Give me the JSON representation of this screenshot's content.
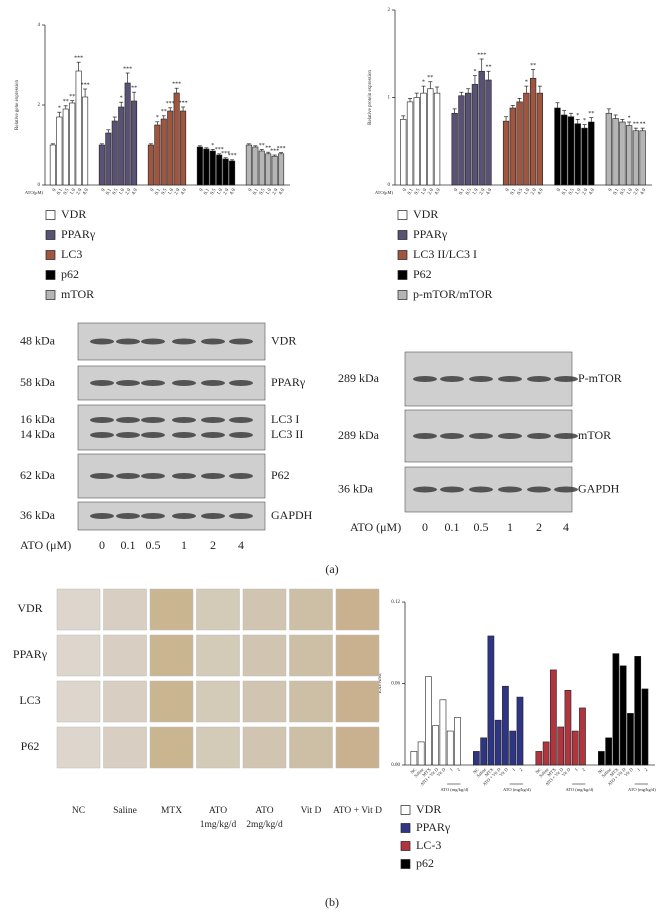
{
  "chart_data": [
    {
      "type": "bar",
      "y_label": "Relative gene expression",
      "x_label": "ATO(μM)",
      "categories": [
        "0",
        "0.1",
        "0.5",
        "1.0",
        "2.0",
        "4.0"
      ],
      "ylim": [
        0,
        4
      ],
      "yticks": [
        0,
        2,
        4
      ],
      "legend": "below",
      "series": [
        {
          "name": "VDR",
          "color": "#ffffff",
          "values": [
            1.0,
            1.7,
            1.9,
            2.05,
            2.85,
            2.2
          ],
          "errors": [
            0.03,
            0.12,
            0.08,
            0.06,
            0.22,
            0.2
          ],
          "sig": [
            null,
            "*",
            "**",
            "**",
            "***",
            "***"
          ]
        },
        {
          "name": "PPARγ",
          "color": "#5a5274",
          "values": [
            1.0,
            1.3,
            1.6,
            1.95,
            2.55,
            2.1
          ],
          "errors": [
            0.03,
            0.08,
            0.1,
            0.12,
            0.25,
            0.22
          ],
          "sig": [
            null,
            null,
            null,
            "*",
            "***",
            "**"
          ]
        },
        {
          "name": "LC3",
          "color": "#a0553e",
          "values": [
            1.0,
            1.5,
            1.65,
            1.85,
            2.3,
            1.85
          ],
          "errors": [
            0.03,
            0.08,
            0.08,
            0.08,
            0.12,
            0.1
          ],
          "sig": [
            null,
            "*",
            "**",
            "***",
            "***",
            "***"
          ]
        },
        {
          "name": "p62",
          "color": "#000000",
          "values": [
            0.95,
            0.9,
            0.85,
            0.75,
            0.65,
            0.6
          ],
          "errors": [
            0.03,
            0.03,
            0.04,
            0.03,
            0.03,
            0.03
          ],
          "sig": [
            null,
            null,
            "*",
            "***",
            "***",
            "***"
          ]
        },
        {
          "name": "mTOR",
          "color": "#b5b5b5",
          "values": [
            1.0,
            0.95,
            0.85,
            0.78,
            0.72,
            0.78
          ],
          "errors": [
            0.03,
            0.03,
            0.04,
            0.04,
            0.03,
            0.03
          ],
          "sig": [
            null,
            null,
            "**",
            "**",
            "***",
            "***"
          ]
        }
      ]
    },
    {
      "type": "bar",
      "y_label": "Relative protein expression",
      "x_label": "ATO(μM)",
      "categories": [
        "0",
        "0.1",
        "0.5",
        "1.0",
        "2.0",
        "4.0"
      ],
      "ylim": [
        0,
        2
      ],
      "yticks": [
        0,
        1,
        2
      ],
      "legend": "below",
      "series": [
        {
          "name": "VDR",
          "color": "#ffffff",
          "values": [
            0.75,
            0.95,
            1.0,
            1.05,
            1.1,
            1.05
          ],
          "errors": [
            0.04,
            0.04,
            0.05,
            0.08,
            0.08,
            0.07
          ],
          "sig": [
            null,
            null,
            null,
            "*",
            "**",
            null
          ]
        },
        {
          "name": "PPARγ",
          "color": "#5a5274",
          "values": [
            0.82,
            1.02,
            1.05,
            1.15,
            1.3,
            1.2
          ],
          "errors": [
            0.05,
            0.04,
            0.05,
            0.1,
            0.14,
            0.1
          ],
          "sig": [
            null,
            null,
            null,
            "*",
            "***",
            "**"
          ]
        },
        {
          "name": "LC3 II/LC3 I",
          "color": "#a0553e",
          "values": [
            0.73,
            0.88,
            0.95,
            1.05,
            1.22,
            1.05
          ],
          "errors": [
            0.05,
            0.03,
            0.04,
            0.08,
            0.1,
            0.08
          ],
          "sig": [
            null,
            null,
            null,
            "*",
            "**",
            null
          ]
        },
        {
          "name": "P62",
          "color": "#000000",
          "values": [
            0.88,
            0.8,
            0.78,
            0.7,
            0.65,
            0.72
          ],
          "errors": [
            0.06,
            0.05,
            0.04,
            0.05,
            0.04,
            0.05
          ],
          "sig": [
            null,
            null,
            null,
            "*",
            "*",
            "**"
          ]
        },
        {
          "name": "p-mTOR/mTOR",
          "color": "#b5b5b5",
          "values": [
            0.82,
            0.76,
            0.72,
            0.68,
            0.62,
            0.62
          ],
          "errors": [
            0.05,
            0.04,
            0.03,
            0.04,
            0.03,
            0.03
          ],
          "sig": [
            null,
            null,
            null,
            "*",
            "**",
            "**"
          ]
        }
      ]
    },
    {
      "type": "bar",
      "y_label": "IOD/Area",
      "x_group_label": "ATO (mg/kg/d)",
      "categories": [
        "NC",
        "Saline",
        "MTX",
        "ATO + Vit D",
        "Vit D",
        "1",
        "2"
      ],
      "ylim": [
        0,
        0.12
      ],
      "yticks": [
        {
          "value": 0,
          "label": "0.00"
        },
        {
          "value": 0.06,
          "label": "0.06"
        },
        {
          "value": 0.12,
          "label": "0.12"
        }
      ],
      "legend": "below",
      "series": [
        {
          "name": "VDR",
          "color": "#ffffff",
          "values": [
            0.01,
            0.017,
            0.065,
            0.029,
            0.048,
            0.025,
            0.035
          ]
        },
        {
          "name": "PPARγ",
          "color": "#2e3585",
          "values": [
            0.01,
            0.02,
            0.095,
            0.033,
            0.058,
            0.025,
            0.05
          ]
        },
        {
          "name": "LC-3",
          "color": "#b0353e",
          "values": [
            0.01,
            0.017,
            0.07,
            0.028,
            0.055,
            0.025,
            0.042
          ]
        },
        {
          "name": "p62",
          "color": "#000000",
          "values": [
            0.01,
            0.02,
            0.082,
            0.073,
            0.038,
            0.08,
            0.056
          ]
        }
      ]
    }
  ],
  "blots": {
    "left": {
      "rows": [
        {
          "kda": [
            "48 kDa"
          ],
          "protein": [
            "VDR"
          ]
        },
        {
          "kda": [
            "58 kDa"
          ],
          "protein": [
            "PPARγ"
          ]
        },
        {
          "kda": [
            "16 kDa",
            "14 kDa"
          ],
          "protein": [
            "LC3 I",
            "LC3 II"
          ]
        },
        {
          "kda": [
            "62 kDa"
          ],
          "protein": [
            "P62"
          ]
        },
        {
          "kda": [
            "36 kDa"
          ],
          "protein": [
            "GAPDH"
          ]
        }
      ],
      "dose_label": "ATO (μM)",
      "doses": [
        "0",
        "0.1",
        "0.5",
        "1",
        "2",
        "4"
      ]
    },
    "right": {
      "rows": [
        {
          "kda": [
            "289 kDa"
          ],
          "protein": [
            "P-mTOR"
          ]
        },
        {
          "kda": [
            "289 kDa"
          ],
          "protein": [
            "mTOR"
          ]
        },
        {
          "kda": [
            "36 kDa"
          ],
          "protein": [
            "GAPDH"
          ]
        }
      ],
      "dose_label": "ATO (μM)",
      "doses": [
        "0",
        "0.1",
        "0.5",
        "1",
        "2",
        "4"
      ]
    }
  },
  "ihc": {
    "rows": [
      "VDR",
      "PPARγ",
      "LC3",
      "P62"
    ],
    "columns": [
      [
        "NC"
      ],
      [
        "Saline"
      ],
      [
        "MTX"
      ],
      [
        "ATO",
        "1mg/kg/d"
      ],
      [
        "ATO",
        "2mg/kg/d"
      ],
      [
        "Vit D"
      ],
      [
        "ATO + Vit D"
      ]
    ]
  },
  "panel_labels": [
    "(a)",
    "(b)"
  ]
}
